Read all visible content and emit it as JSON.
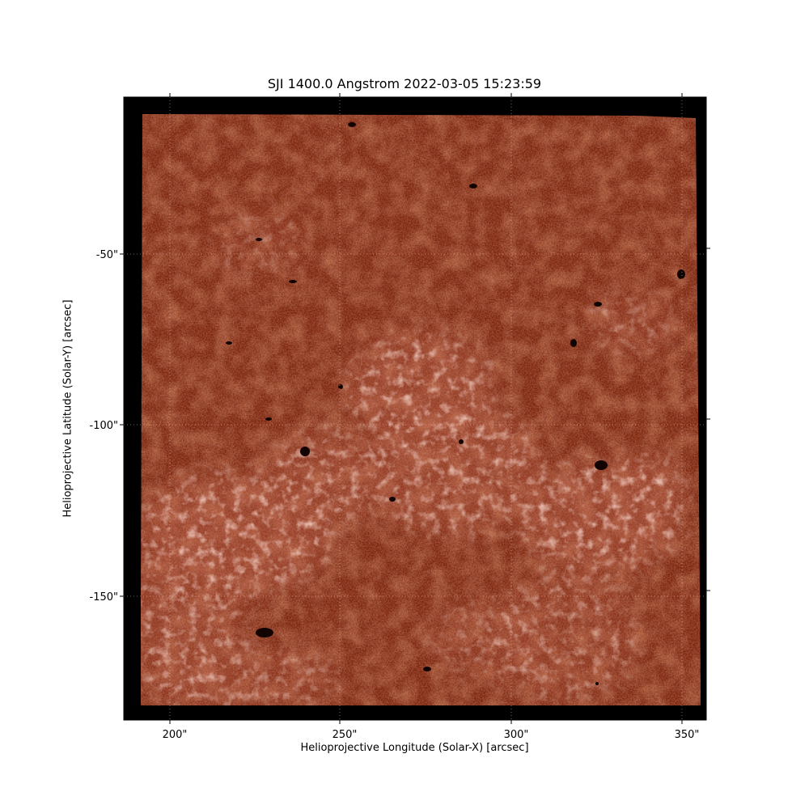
{
  "title": "SJI 1400.0 Angstrom 2022-03-05 15:23:59",
  "xlabel": "Helioprojective Longitude (Solar-X) [arcsec]",
  "ylabel": "Helioprojective Latitude (Solar-Y) [arcsec]",
  "x_ticks": [
    "200\"",
    "250\"",
    "300\"",
    "350\""
  ],
  "y_ticks": [
    "-50\"",
    "-100\"",
    "-150\""
  ],
  "colormap": "irissji1400",
  "colors": {
    "background": "#000000",
    "plasma_dark": "#7a2208",
    "plasma_mid": "#a94328",
    "plasma_bright": "#f0d0c4"
  }
}
